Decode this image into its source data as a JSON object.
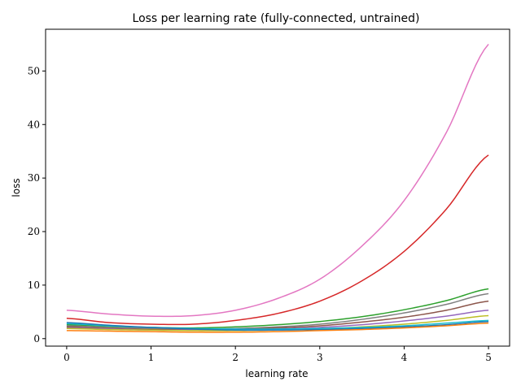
{
  "chart_data": {
    "type": "line",
    "title": "Loss per learning rate (fully-connected, untrained)",
    "xlabel": "learning rate",
    "ylabel": "loss",
    "xlim": [
      -0.25,
      5.25
    ],
    "ylim": [
      -1.4,
      57.8
    ],
    "xticks": [
      0,
      1,
      2,
      3,
      4,
      5
    ],
    "yticks": [
      0,
      10,
      20,
      30,
      40,
      50
    ],
    "grid": false,
    "legend": "none",
    "x": [
      0,
      0.5,
      1,
      1.5,
      2,
      2.5,
      3,
      3.5,
      4,
      4.5,
      5
    ],
    "series": [
      {
        "color": "#e377c2",
        "values": [
          5.3,
          4.6,
          4.2,
          4.3,
          5.3,
          7.5,
          11.1,
          17.3,
          25.8,
          38.5,
          55.0
        ]
      },
      {
        "color": "#d62728",
        "values": [
          3.8,
          3.0,
          2.7,
          2.7,
          3.4,
          4.7,
          7.0,
          10.8,
          16.3,
          24.2,
          34.3
        ]
      },
      {
        "color": "#2ca02c",
        "values": [
          2.6,
          2.3,
          2.1,
          2.0,
          2.2,
          2.6,
          3.2,
          4.1,
          5.4,
          7.1,
          9.3
        ]
      },
      {
        "color": "#7f7f7f",
        "values": [
          2.4,
          2.1,
          1.9,
          1.8,
          1.9,
          2.2,
          2.7,
          3.6,
          4.8,
          6.4,
          8.4
        ]
      },
      {
        "color": "#8c564b",
        "values": [
          2.2,
          1.9,
          1.7,
          1.7,
          1.8,
          2.0,
          2.4,
          3.1,
          4.0,
          5.3,
          7.0
        ]
      },
      {
        "color": "#9467bd",
        "values": [
          2.0,
          1.8,
          1.6,
          1.6,
          1.6,
          1.8,
          2.1,
          2.6,
          3.3,
          4.2,
          5.3
        ]
      },
      {
        "color": "#bcbd22",
        "values": [
          1.9,
          1.7,
          1.6,
          1.5,
          1.5,
          1.6,
          1.8,
          2.2,
          2.7,
          3.4,
          4.3
        ]
      },
      {
        "color": "#17becf",
        "values": [
          2.8,
          2.4,
          2.1,
          1.9,
          1.8,
          1.8,
          1.9,
          2.1,
          2.4,
          2.9,
          3.4
        ]
      },
      {
        "color": "#1f77b4",
        "values": [
          3.0,
          2.5,
          2.1,
          1.8,
          1.6,
          1.6,
          1.7,
          1.9,
          2.2,
          2.6,
          3.2
        ]
      },
      {
        "color": "#ff7f0e",
        "values": [
          1.5,
          1.4,
          1.3,
          1.2,
          1.2,
          1.3,
          1.5,
          1.7,
          2.0,
          2.4,
          2.9
        ]
      }
    ]
  }
}
